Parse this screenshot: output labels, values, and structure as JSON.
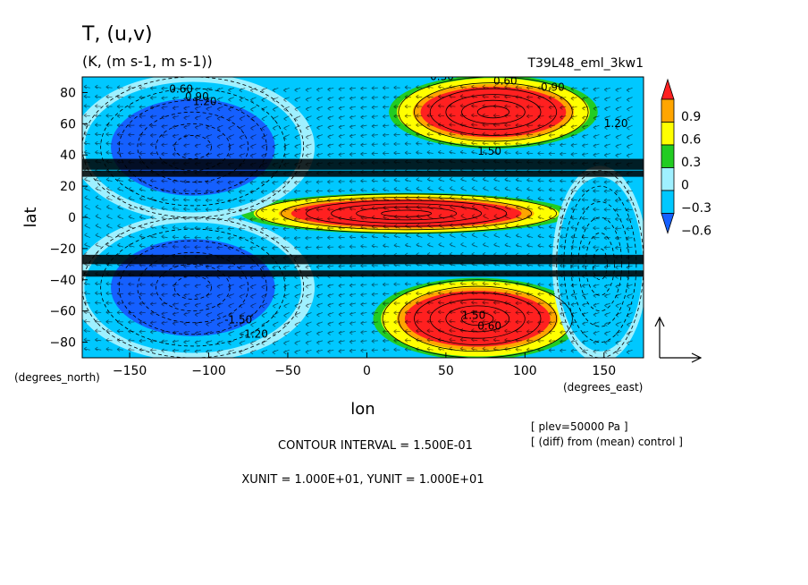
{
  "chart_data": {
    "type": "heatmap",
    "title": "T, (u,v)",
    "subtitle": "(K, (m s-1, m s-1))",
    "run_label": "T39L48_eml_3kw1",
    "xlabel": "lon",
    "ylabel": "lat",
    "x_units": "(degrees_east)",
    "y_units": "(degrees_north)",
    "xlim": [
      -180,
      175
    ],
    "ylim": [
      -90,
      90
    ],
    "x_ticks": [
      -150,
      -100,
      -50,
      0,
      50,
      100,
      150
    ],
    "y_ticks": [
      80,
      60,
      40,
      20,
      0,
      -20,
      -40,
      -60,
      -80
    ],
    "colorbar": {
      "levels": [
        -0.6,
        -0.3,
        0,
        0.3,
        0.6,
        0.9
      ],
      "tick_labels": [
        "0.9",
        "0.6",
        "0.3",
        "0",
        "-0.3",
        "-0.6"
      ],
      "colors": [
        "#1560ff",
        "#00c8ff",
        "#9ff0ff",
        "#22cc22",
        "#ffff00",
        "#ffa500",
        "#ff2020"
      ]
    },
    "contour_labels": [
      "0.30",
      "0.60",
      "0.90",
      "1.20",
      "1.50",
      "-0.60",
      "-0.90",
      "-1.20",
      "-1.50"
    ],
    "regions": [
      {
        "lon": [
          20,
          140
        ],
        "lat": [
          45,
          90
        ],
        "value": 1.2
      },
      {
        "lon": [
          -70,
          120
        ],
        "lat": [
          -10,
          15
        ],
        "value": 1.2
      },
      {
        "lon": [
          10,
          130
        ],
        "lat": [
          -90,
          -40
        ],
        "value": 1.2
      },
      {
        "lon": [
          -180,
          -40
        ],
        "lat": [
          0,
          90
        ],
        "value": -0.9
      },
      {
        "lon": [
          -180,
          -40
        ],
        "lat": [
          -90,
          0
        ],
        "value": -0.9
      },
      {
        "lon": [
          120,
          175
        ],
        "lat": [
          -90,
          30
        ],
        "value": -0.6
      }
    ]
  },
  "footer": {
    "level": "[ plev=50000 Pa ]",
    "diff": "[ (diff) from (mean) control ]",
    "contour_interval": "CONTOUR INTERVAL = 1.500E-01",
    "units": "XUNIT = 1.000E+01, YUNIT = 1.000E+01"
  }
}
